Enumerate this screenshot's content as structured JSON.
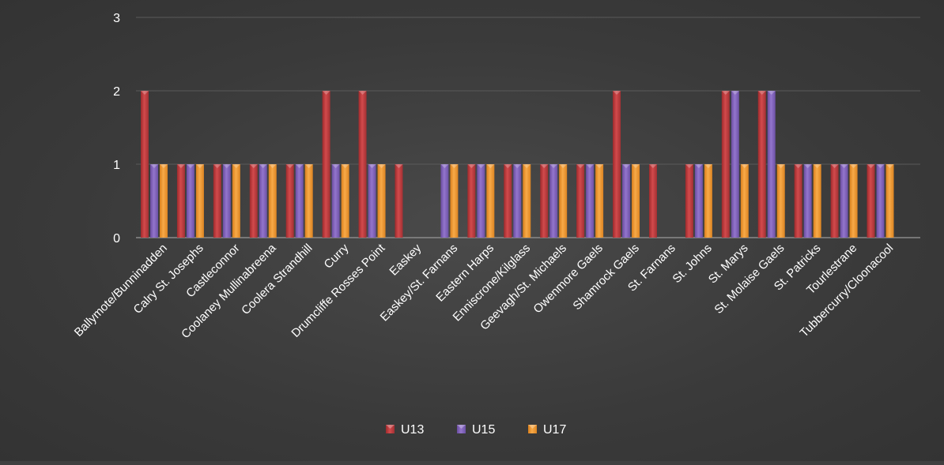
{
  "chart_data": {
    "type": "bar",
    "title": "",
    "xlabel": "",
    "ylabel": "",
    "ylim": [
      0,
      3
    ],
    "yticks": [
      0,
      1,
      2,
      3
    ],
    "grid": true,
    "legend_position": "bottom",
    "categories": [
      "Ballymote/Bunninadden",
      "Calry St. Josephs",
      "Castleconnor",
      "Coolaney Mullinabreena",
      "Coolera Strandhill",
      "Curry",
      "Drumcliffe Rosses Point",
      "Easkey",
      "Easkey/St. Farnans",
      "Eastern Harps",
      "Enniscrone/Kilglass",
      "Geevagh/St. Michaels",
      "Owenmore Gaels",
      "Shamrock Gaels",
      "St. Farnans",
      "St. Johns",
      "St. Marys",
      "St. Molaise Gaels",
      "St. Patricks",
      "Tourlestrane",
      "Tubbercurry/Cloonacool"
    ],
    "series": [
      {
        "name": "U13",
        "color": "#c0393b",
        "values": [
          2,
          1,
          1,
          1,
          1,
          2,
          2,
          1,
          0,
          1,
          1,
          1,
          1,
          2,
          1,
          1,
          2,
          2,
          1,
          1,
          1
        ]
      },
      {
        "name": "U15",
        "color": "#7f5fb8",
        "values": [
          1,
          1,
          1,
          1,
          1,
          1,
          1,
          0,
          1,
          1,
          1,
          1,
          1,
          1,
          0,
          1,
          2,
          2,
          1,
          1,
          1
        ]
      },
      {
        "name": "U17",
        "color": "#f0962e",
        "values": [
          1,
          1,
          1,
          1,
          1,
          1,
          1,
          0,
          1,
          1,
          1,
          1,
          1,
          1,
          0,
          1,
          1,
          1,
          1,
          1,
          1
        ]
      }
    ]
  }
}
